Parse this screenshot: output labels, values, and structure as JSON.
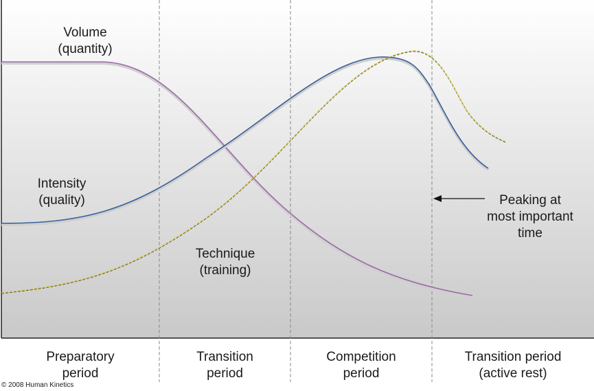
{
  "curves": {
    "volume": {
      "line1": "Volume",
      "line2": "(quantity)",
      "color": "#9b6aa8"
    },
    "intensity": {
      "line1": "Intensity",
      "line2": "(quality)",
      "color": "#3a5f9a"
    },
    "technique": {
      "line1": "Technique",
      "line2": "(training)",
      "color": "#a89a26"
    }
  },
  "annotation": {
    "line1": "Peaking at",
    "line2": "most important",
    "line3": "time"
  },
  "periods": [
    {
      "line1": "Preparatory",
      "line2": "period"
    },
    {
      "line1": "Transition",
      "line2": "period"
    },
    {
      "line1": "Competition",
      "line2": "period"
    },
    {
      "line1": "Transition period",
      "line2": "(active rest)"
    }
  ],
  "copyright": "© 2008 Human Kinetics"
}
